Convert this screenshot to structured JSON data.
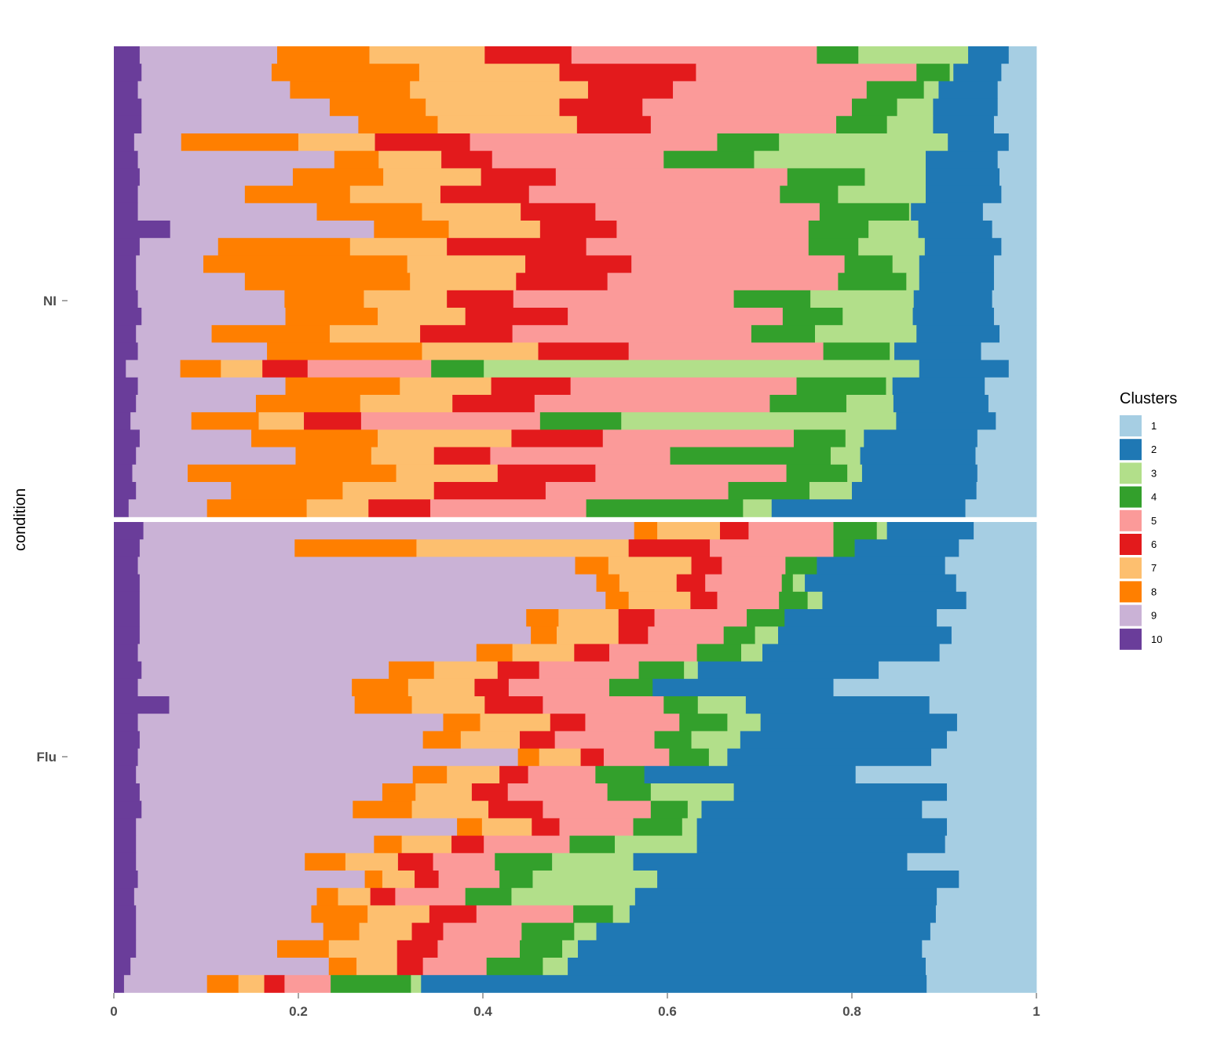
{
  "chart_data": {
    "type": "bar",
    "orientation": "horizontal-stacked-proportion",
    "title": "",
    "xlabel": "",
    "ylabel": "condition",
    "xlim": [
      0,
      1
    ],
    "x_ticks": [
      "0",
      "0.2",
      "0.4",
      "0.6",
      "0.8",
      "1"
    ],
    "x_tick_values": [
      0,
      0.2,
      0.4,
      0.6,
      0.8,
      1
    ],
    "grid": false,
    "legend": {
      "title": "Clusters",
      "position": "right",
      "labels": [
        "1",
        "2",
        "3",
        "4",
        "5",
        "6",
        "7",
        "8",
        "9",
        "10"
      ]
    },
    "colors": {
      "1": "#A6CEE3",
      "2": "#1F78B4",
      "3": "#B2DF8A",
      "4": "#33A02C",
      "5": "#FB9A99",
      "6": "#E31A1C",
      "7": "#FDBF6F",
      "8": "#FF7F00",
      "9": "#CAB2D6",
      "10": "#6A3D9A"
    },
    "stack_order_left_to_right": [
      "10",
      "9",
      "8",
      "7",
      "6",
      "5",
      "4",
      "3",
      "2",
      "1"
    ],
    "panels": [
      {
        "label": "NI",
        "rows": [
          [
            0.028,
            0.177,
            0.277,
            0.402,
            0.496,
            0.762,
            0.807,
            0.926,
            0.97,
            1
          ],
          [
            0.03,
            0.171,
            0.331,
            0.483,
            0.631,
            0.87,
            0.906,
            0.91,
            0.962,
            1
          ],
          [
            0.026,
            0.191,
            0.321,
            0.514,
            0.606,
            0.816,
            0.878,
            0.894,
            0.958,
            1
          ],
          [
            0.03,
            0.234,
            0.338,
            0.483,
            0.573,
            0.8,
            0.849,
            0.888,
            0.958,
            1
          ],
          [
            0.03,
            0.265,
            0.351,
            0.502,
            0.582,
            0.783,
            0.838,
            0.888,
            0.954,
            1
          ],
          [
            0.022,
            0.073,
            0.2,
            0.283,
            0.386,
            0.654,
            0.721,
            0.904,
            0.97,
            1
          ],
          [
            0.026,
            0.239,
            0.287,
            0.355,
            0.41,
            0.596,
            0.694,
            0.88,
            0.958,
            1
          ],
          [
            0.028,
            0.194,
            0.292,
            0.398,
            0.479,
            0.73,
            0.814,
            0.88,
            0.96,
            1
          ],
          [
            0.026,
            0.142,
            0.256,
            0.354,
            0.45,
            0.722,
            0.785,
            0.88,
            0.962,
            1
          ],
          [
            0.026,
            0.22,
            0.334,
            0.441,
            0.522,
            0.765,
            0.862,
            0.864,
            0.942,
            1
          ],
          [
            0.061,
            0.282,
            0.363,
            0.462,
            0.545,
            0.753,
            0.818,
            0.872,
            0.952,
            1
          ],
          [
            0.028,
            0.113,
            0.256,
            0.361,
            0.512,
            0.753,
            0.807,
            0.879,
            0.962,
            1
          ],
          [
            0.024,
            0.097,
            0.318,
            0.446,
            0.561,
            0.792,
            0.844,
            0.873,
            0.954,
            1
          ],
          [
            0.024,
            0.142,
            0.321,
            0.436,
            0.535,
            0.785,
            0.859,
            0.873,
            0.954,
            1
          ],
          [
            0.026,
            0.185,
            0.271,
            0.361,
            0.433,
            0.672,
            0.755,
            0.867,
            0.952,
            1
          ],
          [
            0.03,
            0.186,
            0.286,
            0.381,
            0.492,
            0.725,
            0.79,
            0.866,
            0.954,
            1
          ],
          [
            0.024,
            0.106,
            0.234,
            0.332,
            0.432,
            0.691,
            0.76,
            0.87,
            0.96,
            1
          ],
          [
            0.026,
            0.166,
            0.334,
            0.46,
            0.558,
            0.769,
            0.841,
            0.846,
            0.94,
            1
          ],
          [
            0.013,
            0.072,
            0.116,
            0.161,
            0.21,
            0.344,
            0.401,
            0.873,
            0.97,
            1
          ],
          [
            0.026,
            0.186,
            0.31,
            0.409,
            0.495,
            0.74,
            0.837,
            0.844,
            0.944,
            1
          ],
          [
            0.024,
            0.154,
            0.267,
            0.367,
            0.456,
            0.711,
            0.794,
            0.845,
            0.948,
            1
          ],
          [
            0.018,
            0.084,
            0.157,
            0.206,
            0.268,
            0.462,
            0.55,
            0.848,
            0.956,
            1
          ],
          [
            0.028,
            0.149,
            0.286,
            0.431,
            0.53,
            0.737,
            0.793,
            0.813,
            0.936,
            1
          ],
          [
            0.024,
            0.197,
            0.279,
            0.347,
            0.408,
            0.603,
            0.777,
            0.809,
            0.934,
            1
          ],
          [
            0.02,
            0.08,
            0.306,
            0.416,
            0.522,
            0.729,
            0.795,
            0.811,
            0.936,
            1
          ],
          [
            0.024,
            0.127,
            0.248,
            0.347,
            0.468,
            0.666,
            0.754,
            0.8,
            0.935,
            1
          ],
          [
            0.016,
            0.101,
            0.209,
            0.276,
            0.343,
            0.512,
            0.682,
            0.713,
            0.923,
            1
          ]
        ]
      },
      {
        "label": "Flu",
        "rows": [
          [
            0.032,
            0.564,
            0.589,
            0.657,
            0.688,
            0.78,
            0.827,
            0.838,
            0.932,
            1
          ],
          [
            0.028,
            0.196,
            0.328,
            0.558,
            0.646,
            0.78,
            0.803,
            0.803,
            0.916,
            1
          ],
          [
            0.026,
            0.5,
            0.536,
            0.626,
            0.659,
            0.728,
            0.762,
            0.762,
            0.901,
            1
          ],
          [
            0.028,
            0.523,
            0.548,
            0.61,
            0.641,
            0.724,
            0.736,
            0.749,
            0.913,
            1
          ],
          [
            0.028,
            0.533,
            0.558,
            0.625,
            0.654,
            0.721,
            0.752,
            0.768,
            0.924,
            1
          ],
          [
            0.028,
            0.447,
            0.482,
            0.547,
            0.586,
            0.686,
            0.727,
            0.727,
            0.892,
            1
          ],
          [
            0.028,
            0.452,
            0.48,
            0.547,
            0.579,
            0.661,
            0.695,
            0.72,
            0.908,
            1
          ],
          [
            0.026,
            0.393,
            0.432,
            0.499,
            0.537,
            0.632,
            0.68,
            0.703,
            0.895,
            1
          ],
          [
            0.03,
            0.298,
            0.347,
            0.416,
            0.461,
            0.569,
            0.618,
            0.633,
            0.829,
            1
          ],
          [
            0.026,
            0.258,
            0.319,
            0.391,
            0.428,
            0.537,
            0.584,
            0.584,
            0.78,
            1
          ],
          [
            0.06,
            0.261,
            0.323,
            0.402,
            0.465,
            0.596,
            0.633,
            0.685,
            0.884,
            1
          ],
          [
            0.026,
            0.357,
            0.397,
            0.473,
            0.511,
            0.613,
            0.665,
            0.701,
            0.914,
            1
          ],
          [
            0.028,
            0.335,
            0.376,
            0.44,
            0.478,
            0.586,
            0.626,
            0.679,
            0.903,
            1
          ],
          [
            0.026,
            0.438,
            0.461,
            0.506,
            0.531,
            0.602,
            0.645,
            0.665,
            0.886,
            1
          ],
          [
            0.024,
            0.324,
            0.361,
            0.418,
            0.449,
            0.522,
            0.575,
            0.575,
            0.804,
            1
          ],
          [
            0.028,
            0.291,
            0.327,
            0.388,
            0.427,
            0.535,
            0.582,
            0.672,
            0.903,
            1
          ],
          [
            0.03,
            0.259,
            0.323,
            0.406,
            0.465,
            0.582,
            0.622,
            0.637,
            0.876,
            1
          ],
          [
            0.024,
            0.372,
            0.399,
            0.453,
            0.483,
            0.563,
            0.616,
            0.632,
            0.903,
            1
          ],
          [
            0.024,
            0.282,
            0.312,
            0.366,
            0.401,
            0.494,
            0.543,
            0.632,
            0.901,
            1
          ],
          [
            0.024,
            0.207,
            0.251,
            0.308,
            0.346,
            0.413,
            0.475,
            0.563,
            0.86,
            1
          ],
          [
            0.026,
            0.272,
            0.291,
            0.326,
            0.352,
            0.418,
            0.454,
            0.589,
            0.916,
            1
          ],
          [
            0.022,
            0.22,
            0.243,
            0.278,
            0.305,
            0.381,
            0.431,
            0.565,
            0.892,
            1
          ],
          [
            0.024,
            0.214,
            0.275,
            0.342,
            0.393,
            0.498,
            0.541,
            0.559,
            0.891,
            1
          ],
          [
            0.024,
            0.227,
            0.266,
            0.323,
            0.357,
            0.442,
            0.499,
            0.523,
            0.885,
            1
          ],
          [
            0.024,
            0.177,
            0.233,
            0.307,
            0.351,
            0.44,
            0.486,
            0.503,
            0.876,
            1
          ],
          [
            0.018,
            0.233,
            0.263,
            0.307,
            0.335,
            0.404,
            0.465,
            0.492,
            0.88,
            1
          ],
          [
            0.011,
            0.101,
            0.135,
            0.163,
            0.185,
            0.235,
            0.322,
            0.333,
            0.881,
            1
          ]
        ]
      }
    ]
  }
}
